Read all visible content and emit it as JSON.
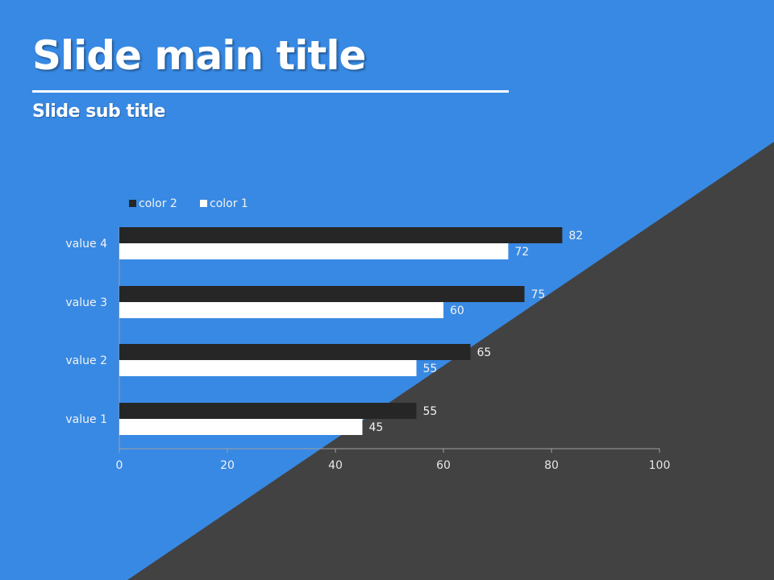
{
  "slide": {
    "title": "Slide main title",
    "subtitle": "Slide sub title"
  },
  "colors": {
    "background_blue": "#3889e3",
    "background_dark": "#424242",
    "title_text": "#ffffff",
    "series_dark": "#262626",
    "series_light": "#ffffff",
    "axis_text_on_blue": "#f2f2f2",
    "axis_line": "#a0a0a0"
  },
  "chart_data": {
    "type": "bar",
    "orientation": "horizontal",
    "categories": [
      "value 1",
      "value 2",
      "value 3",
      "value 4"
    ],
    "series": [
      {
        "name": "color 2",
        "values": [
          55,
          65,
          75,
          82
        ],
        "color": "#262626"
      },
      {
        "name": "color 1",
        "values": [
          45,
          55,
          60,
          72
        ],
        "color": "#ffffff"
      }
    ],
    "xlim": [
      0,
      100
    ],
    "xticks": [
      0,
      20,
      40,
      60,
      80,
      100
    ],
    "data_labels": true,
    "grid": false,
    "legend_position": "top-left"
  }
}
